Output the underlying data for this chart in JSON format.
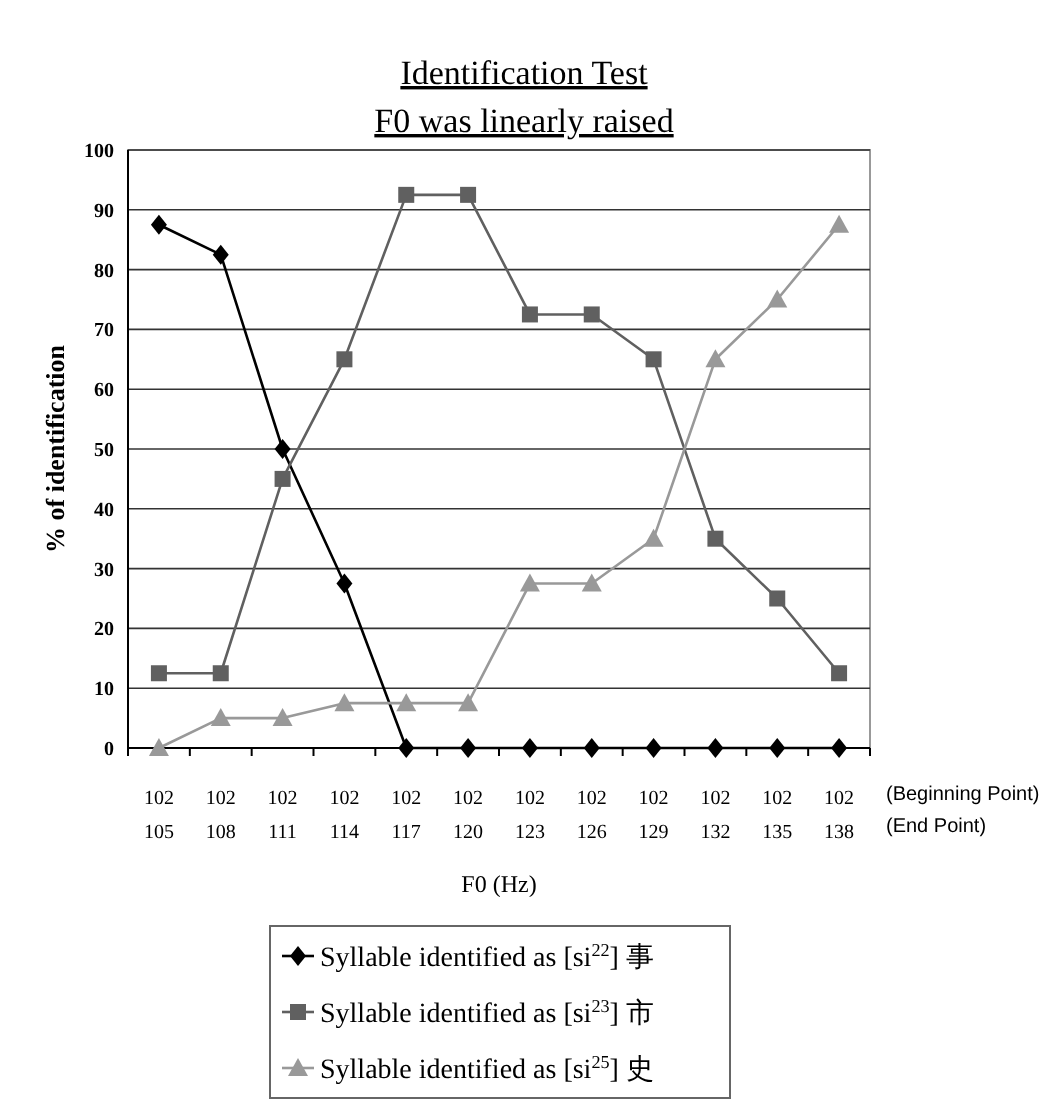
{
  "chart_data": {
    "type": "line",
    "title": "Identification Test",
    "subtitle": "F0 was linearly raised",
    "xlabel": "F0 (Hz)",
    "ylabel": "% of identification",
    "categories": [
      "102\n105",
      "102\n108",
      "102\n111",
      "102\n114",
      "102\n117",
      "102\n120",
      "102\n123",
      "102\n126",
      "102\n129",
      "102\n132",
      "102\n135",
      "102\n138"
    ],
    "series": [
      {
        "name": "Syllable identified as [si$^{22}$] 事",
        "color": "#000000",
        "marker": "diamond",
        "values": [
          87.5,
          82.5,
          50,
          27.5,
          0,
          0,
          0,
          0,
          0,
          0,
          0,
          0
        ]
      },
      {
        "name": "Syllable identified as [si$^{23}$] 市",
        "color": "#606060",
        "marker": "square",
        "values": [
          12.5,
          12.5,
          45,
          65,
          92.5,
          92.5,
          72.5,
          72.5,
          65,
          35,
          25,
          12.5
        ]
      },
      {
        "name": "Syllable identified as [si$^{25}$] 史",
        "color": "#999999",
        "marker": "triangle",
        "values": [
          0,
          5,
          5,
          7.5,
          7.5,
          7.5,
          27.5,
          27.5,
          35,
          65,
          75,
          87.5
        ]
      }
    ],
    "ylim": [
      0,
      100
    ],
    "yticks": [
      0,
      10,
      20,
      30,
      40,
      50,
      60,
      70,
      80,
      90,
      100
    ],
    "grid": "y",
    "legend": "bottom",
    "annotations": [
      "(Beginning Point)",
      "(End Point)"
    ]
  }
}
